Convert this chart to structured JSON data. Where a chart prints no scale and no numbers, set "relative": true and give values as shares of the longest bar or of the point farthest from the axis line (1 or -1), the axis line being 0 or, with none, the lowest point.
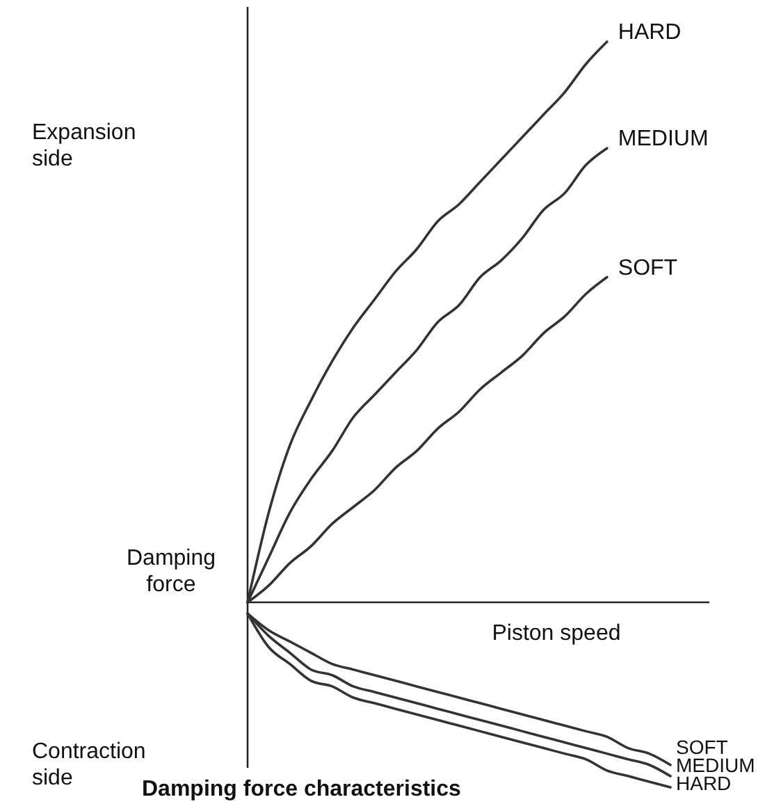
{
  "chart_data": {
    "type": "line",
    "relative": true,
    "title": "Damping force characteristics",
    "xlabel": "Piston speed",
    "ylabel": "Damping force",
    "annotations": [
      "Expansion side",
      "Contraction side"
    ],
    "categories": [
      null,
      null,
      null,
      null,
      null,
      null,
      null,
      null,
      null,
      null,
      null,
      null,
      null,
      null,
      null,
      null,
      null,
      null,
      null,
      null,
      null
    ],
    "series": [
      {
        "name": "HARD",
        "color": "#333333",
        "values": [
          0,
          0.16,
          0.28,
          0.36,
          0.43,
          0.49,
          0.54,
          0.59,
          0.63,
          0.68,
          0.71,
          0.75,
          0.79,
          0.83,
          0.87,
          0.91,
          0.96,
          1.0,
          null,
          null,
          null
        ]
      },
      {
        "name": "MEDIUM",
        "color": "#333333",
        "values": [
          0,
          0.08,
          0.16,
          0.22,
          0.27,
          0.33,
          0.37,
          0.41,
          0.45,
          0.5,
          0.53,
          0.58,
          0.61,
          0.65,
          0.7,
          0.73,
          0.78,
          0.81,
          null,
          null,
          null
        ]
      },
      {
        "name": "SOFT",
        "color": "#333333",
        "values": [
          0,
          0.03,
          0.07,
          0.1,
          0.14,
          0.17,
          0.2,
          0.24,
          0.27,
          0.31,
          0.34,
          0.38,
          0.41,
          0.44,
          0.48,
          0.51,
          0.55,
          0.58,
          null,
          null,
          null
        ]
      },
      {
        "name": "SOFT",
        "color": "#333333",
        "values": [
          -0.02,
          -0.05,
          -0.07,
          -0.09,
          -0.11,
          -0.12,
          -0.13,
          -0.14,
          -0.15,
          -0.16,
          -0.17,
          -0.18,
          -0.19,
          -0.2,
          -0.21,
          -0.22,
          -0.23,
          -0.24,
          -0.26,
          -0.27,
          -0.29
        ]
      },
      {
        "name": "MEDIUM",
        "color": "#333333",
        "values": [
          -0.02,
          -0.06,
          -0.09,
          -0.12,
          -0.13,
          -0.15,
          -0.16,
          -0.17,
          -0.18,
          -0.19,
          -0.2,
          -0.21,
          -0.22,
          -0.23,
          -0.24,
          -0.25,
          -0.26,
          -0.27,
          -0.28,
          -0.29,
          -0.31
        ]
      },
      {
        "name": "HARD",
        "color": "#333333",
        "values": [
          -0.02,
          -0.08,
          -0.11,
          -0.14,
          -0.15,
          -0.17,
          -0.18,
          -0.19,
          -0.2,
          -0.21,
          -0.22,
          -0.23,
          -0.24,
          -0.25,
          -0.26,
          -0.27,
          -0.28,
          -0.3,
          -0.31,
          -0.32,
          -0.33
        ]
      }
    ]
  }
}
